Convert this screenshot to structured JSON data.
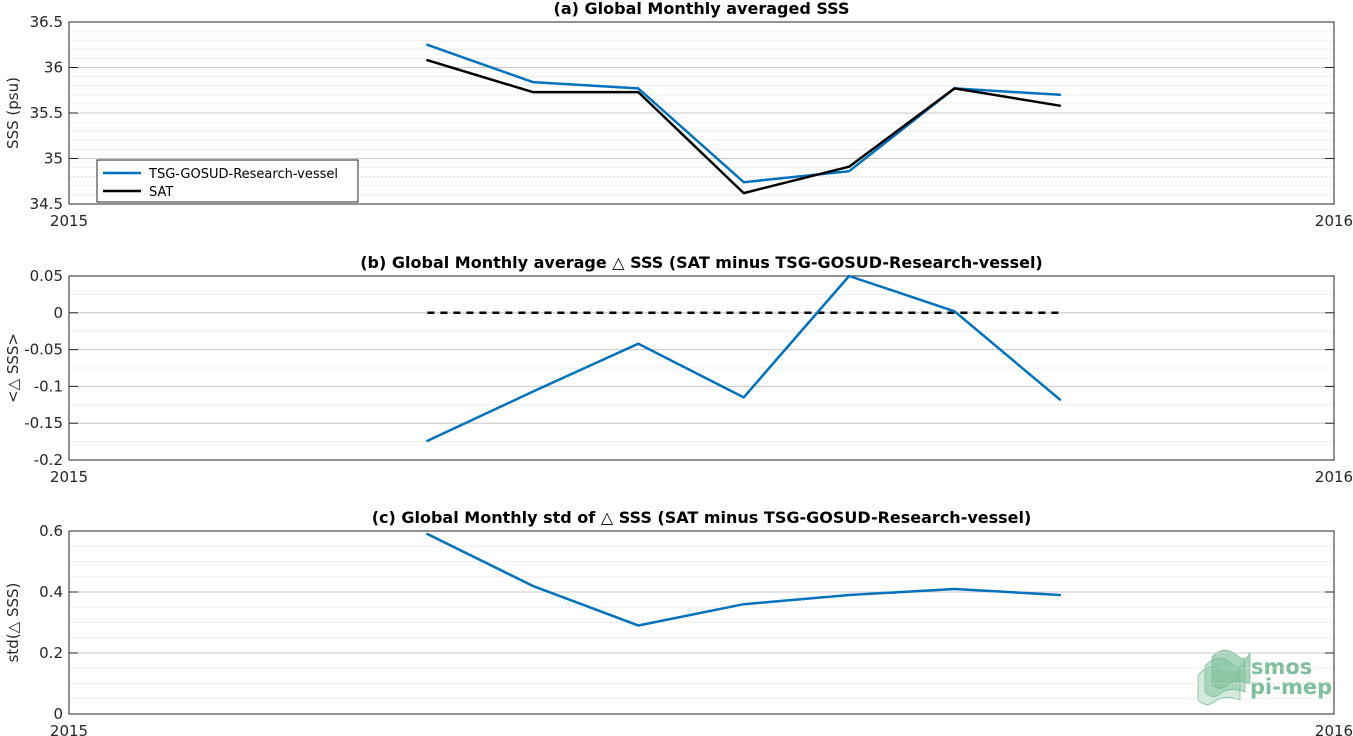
{
  "colors": {
    "tsg": "#0072bd",
    "sat": "#000000",
    "grid": "#dcdcdc",
    "axes": "#262626",
    "logo": "#7dbf9a"
  },
  "logo": {
    "line1": "smos",
    "line2": "pi-mep"
  },
  "chart_data": [
    {
      "type": "line",
      "title": "(a) Global Monthly averaged SSS",
      "ylabel": "SSS (psu)",
      "xlim": [
        0,
        12
      ],
      "ylim": [
        34.5,
        36.5
      ],
      "xticks": [
        {
          "value": 0,
          "label": "2015"
        },
        {
          "value": 12,
          "label": "2016"
        }
      ],
      "yticks": [
        {
          "value": 34.5,
          "label": "34.5"
        },
        {
          "value": 35,
          "label": "35"
        },
        {
          "value": 35.5,
          "label": "35.5"
        },
        {
          "value": 36,
          "label": "36"
        },
        {
          "value": 36.5,
          "label": "36.5"
        }
      ],
      "minor_grid_step": 0.1,
      "grid": true,
      "legend": {
        "placement": "bottom-left"
      },
      "x": [
        3.4,
        4.4,
        5.4,
        6.4,
        7.4,
        8.4,
        9.4
      ],
      "series": [
        {
          "name": "TSG-GOSUD-Research-vessel",
          "color": "#0072bd",
          "dash": "",
          "values": [
            36.25,
            35.84,
            35.77,
            34.74,
            34.86,
            35.77,
            35.7
          ]
        },
        {
          "name": "SAT",
          "color": "#000000",
          "dash": "",
          "values": [
            36.08,
            35.73,
            35.73,
            34.62,
            34.91,
            35.77,
            35.58
          ]
        }
      ]
    },
    {
      "type": "line",
      "title": "(b) Global Monthly average △ SSS (SAT minus TSG-GOSUD-Research-vessel)",
      "ylabel": "<△ SSS>",
      "xlim": [
        0,
        12
      ],
      "ylim": [
        -0.2,
        0.05
      ],
      "xticks": [
        {
          "value": 0,
          "label": "2015"
        },
        {
          "value": 12,
          "label": "2016"
        }
      ],
      "yticks": [
        {
          "value": -0.2,
          "label": "-0.2"
        },
        {
          "value": -0.15,
          "label": "-0.15"
        },
        {
          "value": -0.1,
          "label": "-0.1"
        },
        {
          "value": -0.05,
          "label": "-0.05"
        },
        {
          "value": 0,
          "label": "0"
        },
        {
          "value": 0.05,
          "label": "0.05"
        }
      ],
      "minor_grid_step": 0.025,
      "grid": true,
      "x": [
        3.4,
        4.4,
        5.4,
        6.4,
        7.4,
        8.4,
        9.4
      ],
      "series": [
        {
          "color": "#000000",
          "dash": "7,6",
          "values": [
            0,
            0,
            0,
            0,
            0,
            0,
            0
          ]
        },
        {
          "color": "#0072bd",
          "dash": "",
          "values": [
            -0.174,
            -0.107,
            -0.042,
            -0.115,
            0.05,
            0.002,
            -0.118
          ]
        }
      ]
    },
    {
      "type": "line",
      "title": "(c) Global Monthly std of △ SSS (SAT minus TSG-GOSUD-Research-vessel)",
      "ylabel": "std(△ SSS)",
      "xlim": [
        0,
        12
      ],
      "ylim": [
        0,
        0.6
      ],
      "xticks": [
        {
          "value": 0,
          "label": "2015"
        },
        {
          "value": 12,
          "label": "2016"
        }
      ],
      "yticks": [
        {
          "value": 0,
          "label": "0"
        },
        {
          "value": 0.2,
          "label": "0.2"
        },
        {
          "value": 0.4,
          "label": "0.4"
        },
        {
          "value": 0.6,
          "label": "0.6"
        }
      ],
      "minor_grid_step": 0.05,
      "grid": true,
      "x": [
        3.4,
        4.4,
        5.4,
        6.4,
        7.4,
        8.4,
        9.4
      ],
      "series": [
        {
          "color": "#0072bd",
          "dash": "",
          "values": [
            0.59,
            0.42,
            0.29,
            0.36,
            0.39,
            0.41,
            0.39
          ]
        }
      ]
    }
  ]
}
